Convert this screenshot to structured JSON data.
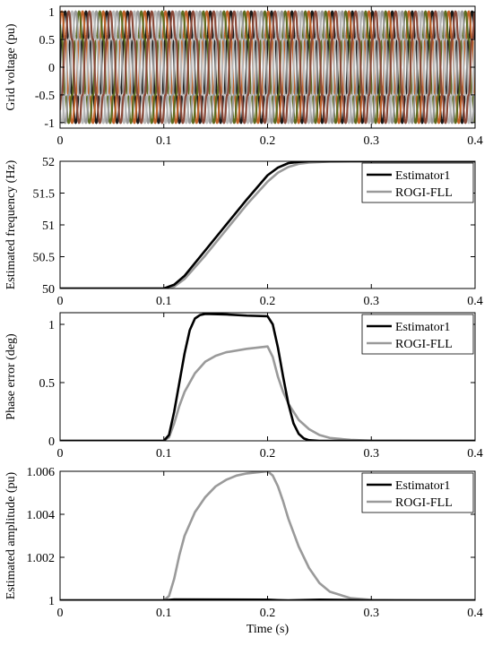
{
  "chart_data": [
    {
      "type": "line",
      "ylabel": "Grid voltage (pu)",
      "xlabel": "",
      "xlim": [
        0,
        0.4
      ],
      "ylim": [
        -1.1,
        1.1
      ],
      "xticks": [
        0,
        0.1,
        0.2,
        0.3,
        0.4
      ],
      "xtick_labels": [
        "0",
        "0.1",
        "0.2",
        "0.3",
        "0.4"
      ],
      "yticks": [
        -1,
        -0.5,
        0,
        0.5,
        1
      ],
      "ytick_labels": [
        "-1",
        "-0.5",
        "0",
        "0.5",
        "1"
      ],
      "grid": false,
      "legend": null,
      "signal": {
        "kind": "distorted three-phase sinusoids",
        "frequency_start_hz": 50,
        "frequency_end_hz": 52,
        "ramp_start_s": 0.1,
        "ramp_end_s": 0.3,
        "amplitude_pu": 1.0,
        "phase_colors": [
          "#1a1a1a",
          "#c0622a",
          "#5c6b20",
          "#9a9a9a",
          "#b8b8b8",
          "#8a4a3a"
        ]
      }
    },
    {
      "type": "line",
      "ylabel": "Estimated frequency (Hz)",
      "xlabel": "",
      "xlim": [
        0,
        0.4
      ],
      "ylim": [
        50,
        52
      ],
      "xticks": [
        0,
        0.1,
        0.2,
        0.3,
        0.4
      ],
      "xtick_labels": [
        "0",
        "0.1",
        "0.2",
        "0.3",
        "0.4"
      ],
      "yticks": [
        50,
        50.5,
        51,
        51.5,
        52
      ],
      "ytick_labels": [
        "50",
        "50.5",
        "51",
        "51.5",
        "52"
      ],
      "grid": false,
      "legend": "top-right",
      "series": [
        {
          "name": "Estimator1",
          "color": "#000000",
          "x": [
            0,
            0.1,
            0.11,
            0.12,
            0.14,
            0.16,
            0.18,
            0.2,
            0.21,
            0.22,
            0.23,
            0.24,
            0.26,
            0.28,
            0.3,
            0.35,
            0.4
          ],
          "y": [
            50,
            50,
            50.06,
            50.2,
            50.6,
            51.0,
            51.4,
            51.78,
            51.9,
            51.97,
            51.99,
            52,
            52,
            52,
            52,
            52,
            52
          ]
        },
        {
          "name": "ROGI-FLL",
          "color": "#9a9a9a",
          "x": [
            0,
            0.1,
            0.11,
            0.12,
            0.14,
            0.16,
            0.18,
            0.2,
            0.21,
            0.22,
            0.23,
            0.24,
            0.26,
            0.28,
            0.3,
            0.35,
            0.4
          ],
          "y": [
            50,
            50,
            50.03,
            50.15,
            50.52,
            50.92,
            51.32,
            51.68,
            51.82,
            51.91,
            51.96,
            51.98,
            51.995,
            52,
            52,
            52,
            52
          ]
        }
      ]
    },
    {
      "type": "line",
      "ylabel": "Phase error (deg)",
      "xlabel": "",
      "xlim": [
        0,
        0.4
      ],
      "ylim": [
        0,
        1.1
      ],
      "xticks": [
        0,
        0.1,
        0.2,
        0.3,
        0.4
      ],
      "xtick_labels": [
        "0",
        "0.1",
        "0.2",
        "0.3",
        "0.4"
      ],
      "yticks": [
        0,
        0.5,
        1
      ],
      "ytick_labels": [
        "0",
        "0.5",
        "1"
      ],
      "grid": false,
      "legend": "top-right",
      "series": [
        {
          "name": "Estimator1",
          "color": "#000000",
          "x": [
            0,
            0.1,
            0.105,
            0.11,
            0.115,
            0.12,
            0.125,
            0.13,
            0.135,
            0.14,
            0.16,
            0.18,
            0.2,
            0.205,
            0.21,
            0.215,
            0.22,
            0.225,
            0.23,
            0.235,
            0.24,
            0.25,
            0.3,
            0.4
          ],
          "y": [
            0,
            0,
            0.05,
            0.25,
            0.5,
            0.75,
            0.95,
            1.05,
            1.08,
            1.09,
            1.085,
            1.075,
            1.07,
            1.0,
            0.8,
            0.55,
            0.32,
            0.15,
            0.06,
            0.02,
            0.005,
            0,
            0,
            0
          ]
        },
        {
          "name": "ROGI-FLL",
          "color": "#9a9a9a",
          "x": [
            0,
            0.1,
            0.105,
            0.11,
            0.115,
            0.12,
            0.13,
            0.14,
            0.15,
            0.16,
            0.18,
            0.2,
            0.205,
            0.21,
            0.215,
            0.22,
            0.23,
            0.24,
            0.25,
            0.26,
            0.28,
            0.3,
            0.35,
            0.4
          ],
          "y": [
            0,
            0,
            0.03,
            0.15,
            0.3,
            0.42,
            0.58,
            0.68,
            0.73,
            0.76,
            0.79,
            0.81,
            0.72,
            0.55,
            0.42,
            0.32,
            0.18,
            0.1,
            0.05,
            0.025,
            0.008,
            0.002,
            0,
            0
          ]
        }
      ]
    },
    {
      "type": "line",
      "ylabel": "Estimated amplitude (pu)",
      "xlabel": "Time (s)",
      "xlim": [
        0,
        0.4
      ],
      "ylim": [
        1,
        1.006
      ],
      "xticks": [
        0,
        0.1,
        0.2,
        0.3,
        0.4
      ],
      "xtick_labels": [
        "0",
        "0.1",
        "0.2",
        "0.3",
        "0.4"
      ],
      "yticks": [
        1,
        1.002,
        1.004,
        1.006
      ],
      "ytick_labels": [
        "1",
        "1.002",
        "1.004",
        "1.006"
      ],
      "grid": false,
      "legend": "top-right",
      "series": [
        {
          "name": "Estimator1",
          "color": "#000000",
          "x": [
            0,
            0.1,
            0.11,
            0.2,
            0.21,
            0.22,
            0.25,
            0.3,
            0.4
          ],
          "y": [
            1,
            1,
            1.00004,
            1.00003,
            1.00001,
            1,
            1.00003,
            1,
            1
          ]
        },
        {
          "name": "ROGI-FLL",
          "color": "#9a9a9a",
          "x": [
            0,
            0.1,
            0.105,
            0.11,
            0.115,
            0.12,
            0.13,
            0.14,
            0.15,
            0.16,
            0.17,
            0.18,
            0.19,
            0.2,
            0.205,
            0.21,
            0.215,
            0.22,
            0.23,
            0.24,
            0.25,
            0.26,
            0.28,
            0.3,
            0.35,
            0.4
          ],
          "y": [
            1,
            1,
            1.0002,
            1.001,
            1.0021,
            1.003,
            1.0041,
            1.0048,
            1.0053,
            1.0056,
            1.0058,
            1.0059,
            1.00595,
            1.006,
            1.0058,
            1.0053,
            1.0046,
            1.0038,
            1.0025,
            1.0015,
            1.0008,
            1.0004,
            1.0001,
            1.00002,
            1,
            1
          ]
        }
      ]
    }
  ]
}
